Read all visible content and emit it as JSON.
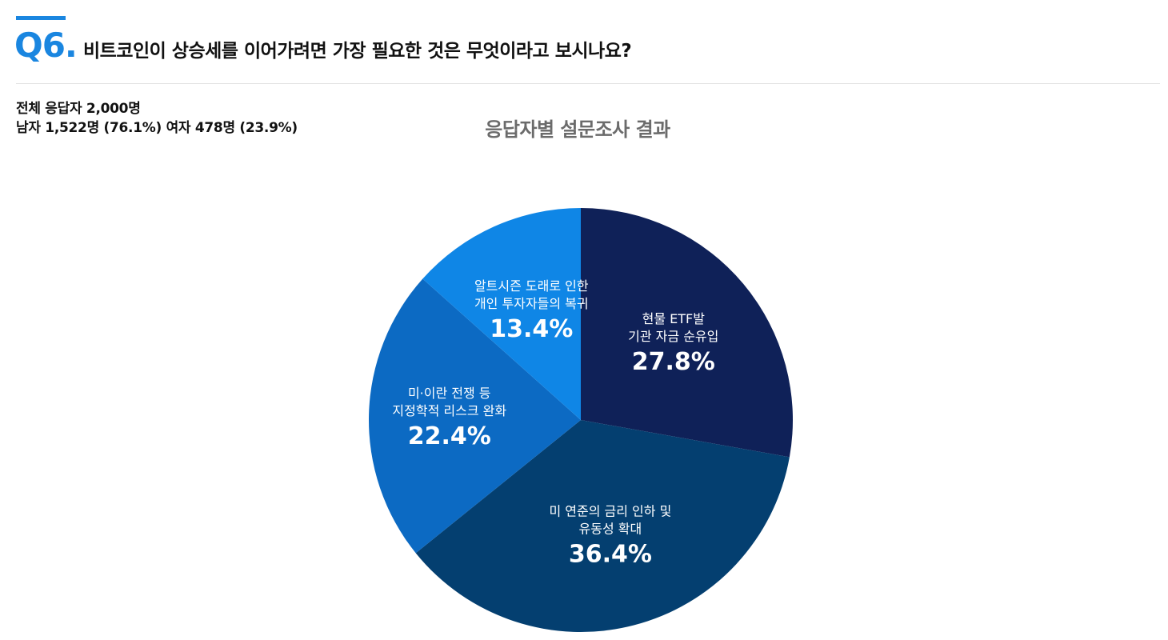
{
  "header": {
    "question_number": "Q6.",
    "question_text": "비트코인이 상승세를 이어가려면 가장 필요한 것은 무엇이라고 보시나요?",
    "accent_color": "#1a86e0"
  },
  "respondents": {
    "total_line": "전체 응답자 2,000명",
    "gender_line": "남자 1,522명 (76.1%) 여자 478명 (23.9%)"
  },
  "chart_data": {
    "type": "pie",
    "title": "응답자별 설문조사 결과",
    "start_angle_deg": 0,
    "direction": "clockwise",
    "slices": [
      {
        "lines": [
          "현물 ETF발",
          "기관 자금 순유입"
        ],
        "value": 27.8,
        "value_label": "27.8%",
        "color": "#0f2158"
      },
      {
        "lines": [
          "미 연준의 금리 인하 및",
          "유동성 확대"
        ],
        "value": 36.4,
        "value_label": "36.4%",
        "color": "#043f70"
      },
      {
        "lines": [
          "미·이란 전쟁 등",
          "지정학적 리스크 완화"
        ],
        "value": 22.4,
        "value_label": "22.4%",
        "color": "#0c6ac3"
      },
      {
        "lines": [
          "알트시즌 도래로 인한",
          "개인 투자자들의 복귀"
        ],
        "value": 13.4,
        "value_label": "13.4%",
        "color": "#0f86e6"
      }
    ]
  }
}
